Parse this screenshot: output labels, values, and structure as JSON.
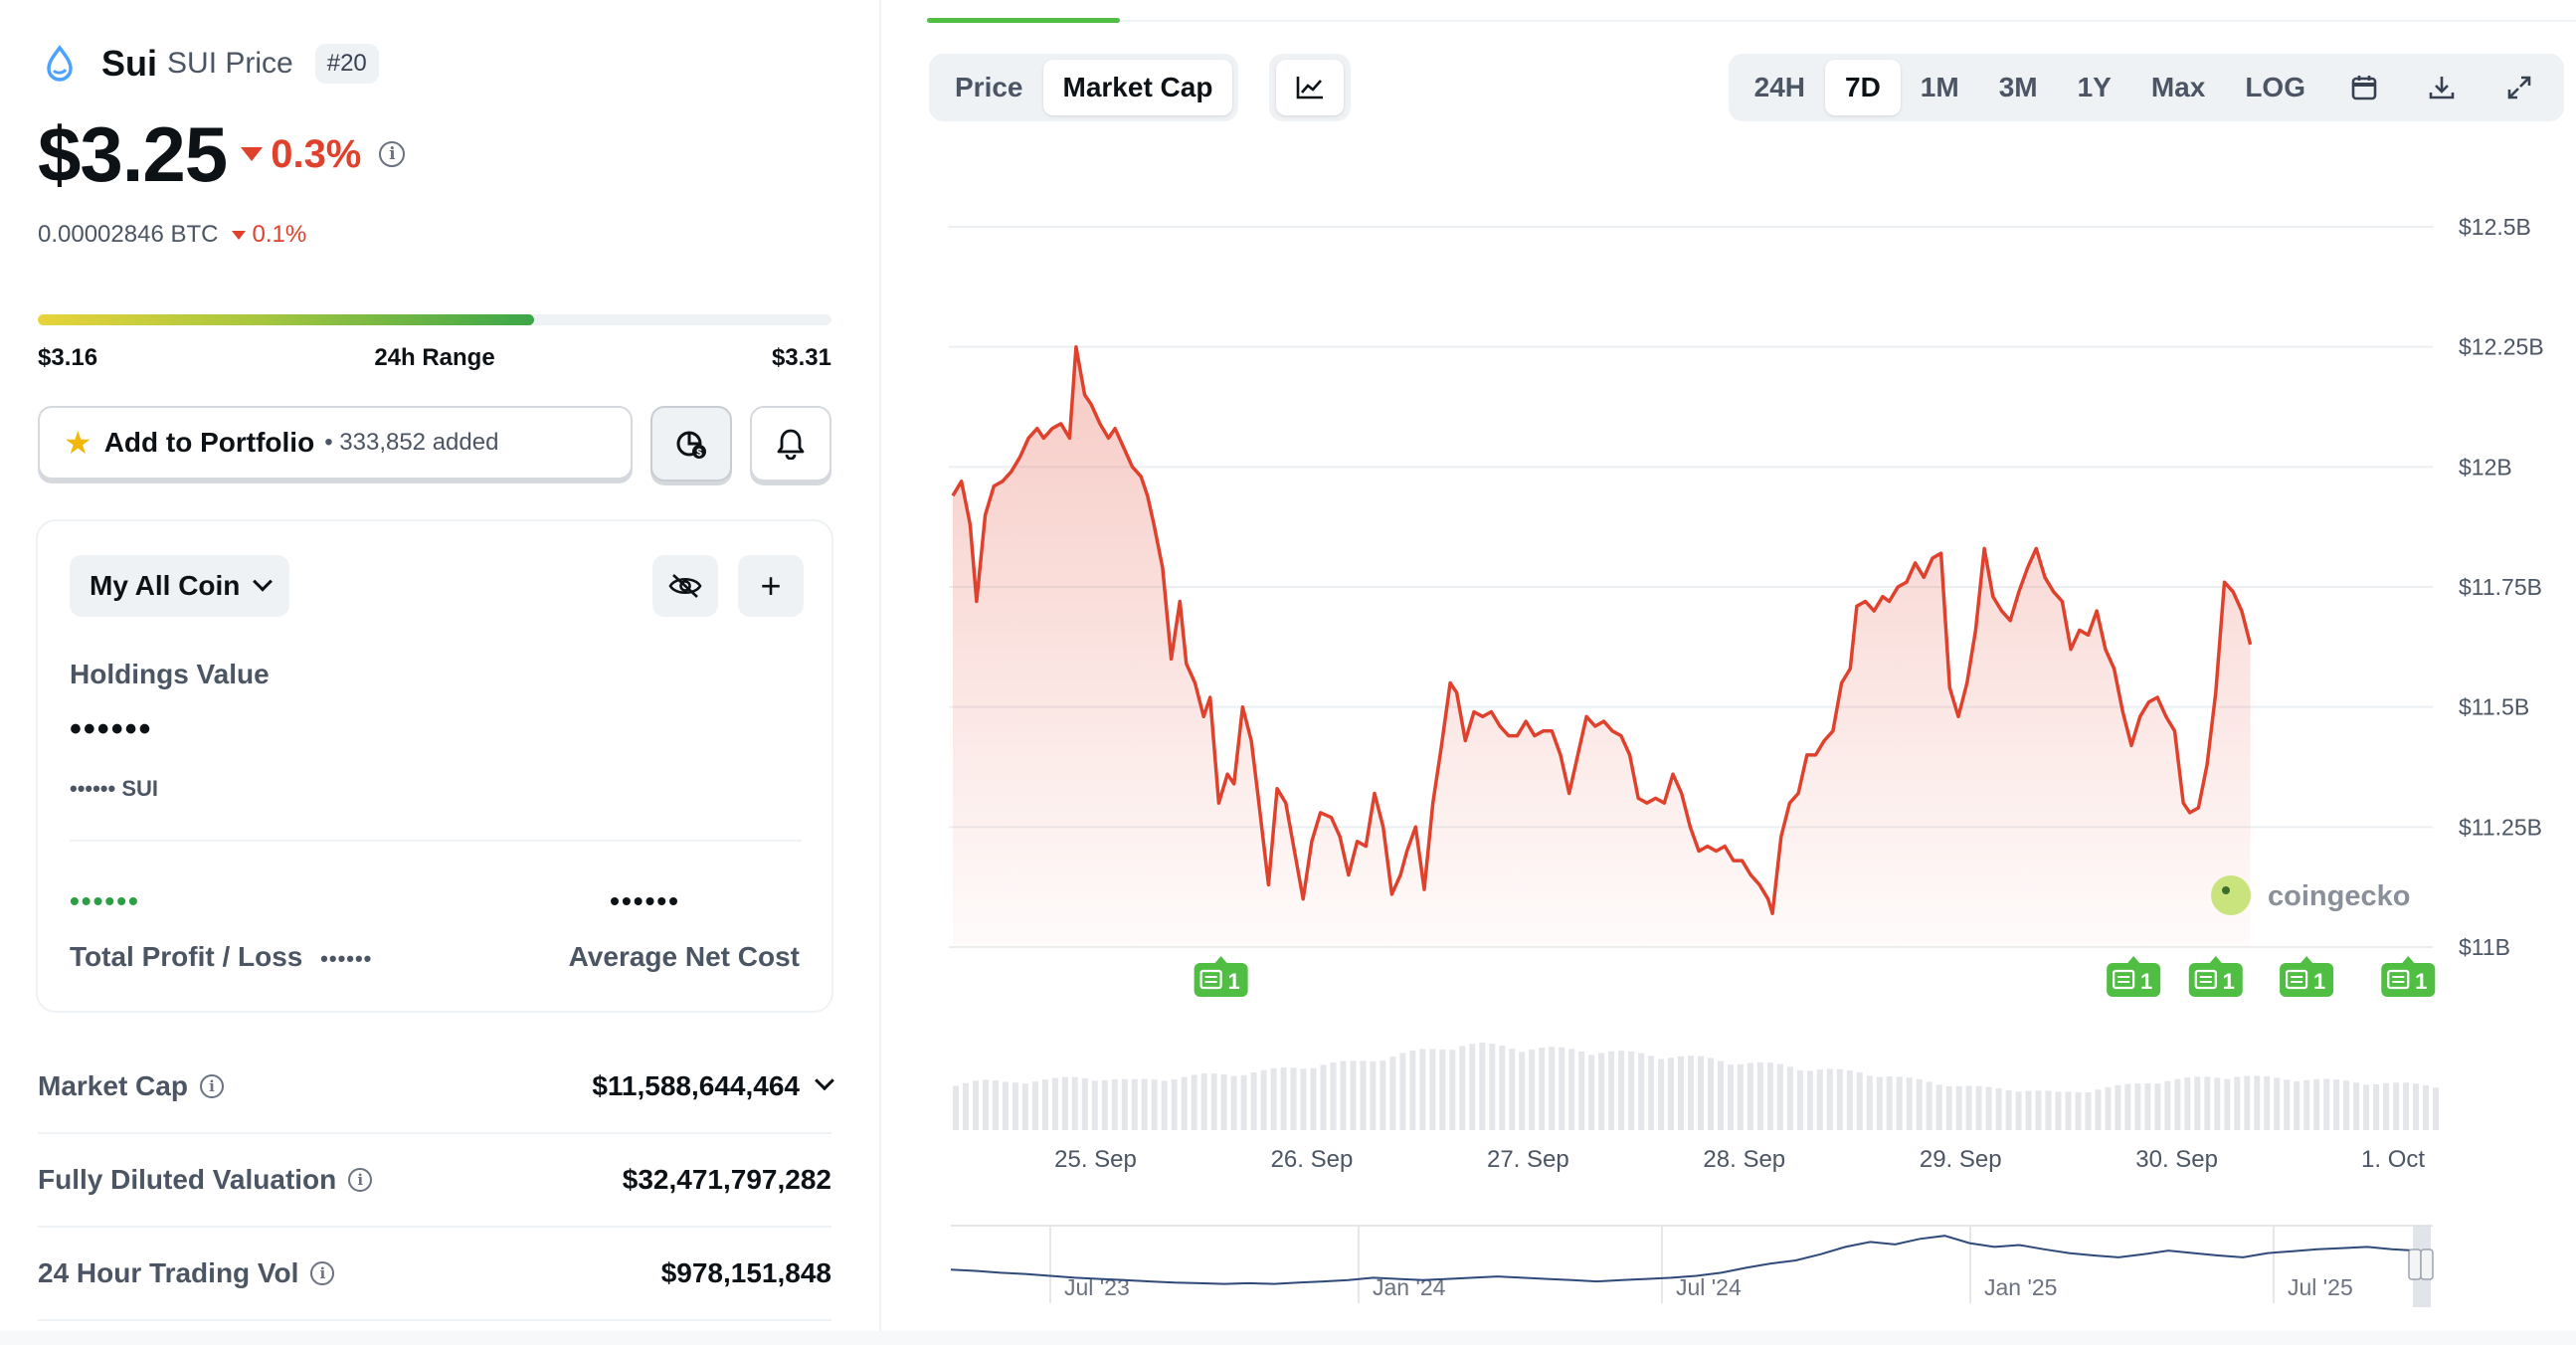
{
  "coin": {
    "name": "Sui",
    "subtitle": "SUI Price",
    "rank": "#20",
    "price": "$3.25",
    "change_pct": "0.3%",
    "btc_price": "0.00002846 BTC",
    "btc_change_pct": "0.1%",
    "color": "#4ca3ff"
  },
  "range24h": {
    "low": "$3.16",
    "label": "24h Range",
    "high": "$3.31",
    "position": 0.625
  },
  "portfolio": {
    "add_label": "Add to Portfolio",
    "added_count": "• 333,852 added",
    "star_icon": "star-icon",
    "pie_icon": "portfolio-pie-icon",
    "bell_icon": "bell-icon"
  },
  "holdings": {
    "dropdown_label": "My All Coin",
    "holdings_label": "Holdings Value",
    "holdings_value": "••••••",
    "holdings_coin": "•••••• SUI",
    "profit_value": "••••••",
    "profit_label": "Total Profit / Loss",
    "profit_label_dots": "••••••",
    "anc_value": "••••••",
    "anc_label": "Average Net Cost"
  },
  "stats": [
    {
      "label": "Market Cap",
      "value": "$11,588,644,464",
      "expand": true
    },
    {
      "label": "Fully Diluted Valuation",
      "value": "$32,471,797,282",
      "expand": false
    },
    {
      "label": "24 Hour Trading Vol",
      "value": "$978,151,848",
      "expand": false
    }
  ],
  "chart_controls": {
    "tabs": [
      "Price",
      "Market Cap"
    ],
    "active_tab": "Market Cap",
    "ranges": [
      "24H",
      "7D",
      "1M",
      "3M",
      "1Y",
      "Max",
      "LOG"
    ],
    "active_range": "7D"
  },
  "chart_data": {
    "type": "area",
    "y_axis_labels": [
      "$12.5B",
      "$12.25B",
      "$12B",
      "$11.75B",
      "$11.5B",
      "$11.25B",
      "$11B"
    ],
    "ylim": [
      11.0,
      12.5
    ],
    "x_tick_labels": [
      "25. Sep",
      "26. Sep",
      "27. Sep",
      "28. Sep",
      "29. Sep",
      "30. Sep",
      "1. Oct"
    ],
    "xlim": [
      -0.66,
      6.34
    ],
    "line_color": "#e0412d",
    "watermark": "coingecko",
    "series": [
      {
        "values": [
          [
            -0.66,
            11.94
          ],
          [
            -0.62,
            11.97
          ],
          [
            -0.58,
            11.88
          ],
          [
            -0.55,
            11.72
          ],
          [
            -0.51,
            11.9
          ],
          [
            -0.47,
            11.96
          ],
          [
            -0.43,
            11.97
          ],
          [
            -0.39,
            11.99
          ],
          [
            -0.35,
            12.02
          ],
          [
            -0.31,
            12.06
          ],
          [
            -0.27,
            12.08
          ],
          [
            -0.24,
            12.06
          ],
          [
            -0.2,
            12.08
          ],
          [
            -0.16,
            12.09
          ],
          [
            -0.12,
            12.06
          ],
          [
            -0.09,
            12.25
          ],
          [
            -0.05,
            12.15
          ],
          [
            -0.02,
            12.13
          ],
          [
            0.02,
            12.09
          ],
          [
            0.06,
            12.06
          ],
          [
            0.09,
            12.08
          ],
          [
            0.13,
            12.04
          ],
          [
            0.17,
            12.0
          ],
          [
            0.21,
            11.98
          ],
          [
            0.24,
            11.94
          ],
          [
            0.27,
            11.88
          ],
          [
            0.31,
            11.79
          ],
          [
            0.35,
            11.6
          ],
          [
            0.39,
            11.72
          ],
          [
            0.42,
            11.59
          ],
          [
            0.46,
            11.55
          ],
          [
            0.5,
            11.48
          ],
          [
            0.53,
            11.52
          ],
          [
            0.57,
            11.3
          ],
          [
            0.61,
            11.36
          ],
          [
            0.64,
            11.34
          ],
          [
            0.68,
            11.5
          ],
          [
            0.72,
            11.43
          ],
          [
            0.75,
            11.32
          ],
          [
            0.8,
            11.13
          ],
          [
            0.84,
            11.33
          ],
          [
            0.88,
            11.3
          ],
          [
            0.92,
            11.2
          ],
          [
            0.96,
            11.1
          ],
          [
            1.0,
            11.22
          ],
          [
            1.04,
            11.28
          ],
          [
            1.09,
            11.27
          ],
          [
            1.13,
            11.23
          ],
          [
            1.17,
            11.15
          ],
          [
            1.21,
            11.22
          ],
          [
            1.25,
            11.21
          ],
          [
            1.29,
            11.32
          ],
          [
            1.33,
            11.25
          ],
          [
            1.37,
            11.11
          ],
          [
            1.41,
            11.15
          ],
          [
            1.44,
            11.2
          ],
          [
            1.48,
            11.25
          ],
          [
            1.52,
            11.12
          ],
          [
            1.56,
            11.3
          ],
          [
            1.6,
            11.42
          ],
          [
            1.64,
            11.55
          ],
          [
            1.67,
            11.53
          ],
          [
            1.71,
            11.43
          ],
          [
            1.75,
            11.49
          ],
          [
            1.79,
            11.48
          ],
          [
            1.83,
            11.49
          ],
          [
            1.87,
            11.46
          ],
          [
            1.91,
            11.44
          ],
          [
            1.95,
            11.44
          ],
          [
            1.99,
            11.47
          ],
          [
            2.03,
            11.44
          ],
          [
            2.07,
            11.45
          ],
          [
            2.11,
            11.45
          ],
          [
            2.15,
            11.4
          ],
          [
            2.19,
            11.32
          ],
          [
            2.23,
            11.4
          ],
          [
            2.27,
            11.48
          ],
          [
            2.31,
            11.46
          ],
          [
            2.35,
            11.47
          ],
          [
            2.39,
            11.45
          ],
          [
            2.43,
            11.44
          ],
          [
            2.47,
            11.4
          ],
          [
            2.51,
            11.31
          ],
          [
            2.55,
            11.3
          ],
          [
            2.59,
            11.31
          ],
          [
            2.63,
            11.3
          ],
          [
            2.67,
            11.36
          ],
          [
            2.71,
            11.32
          ],
          [
            2.75,
            11.25
          ],
          [
            2.79,
            11.2
          ],
          [
            2.83,
            11.21
          ],
          [
            2.87,
            11.2
          ],
          [
            2.91,
            11.21
          ],
          [
            2.95,
            11.18
          ],
          [
            2.99,
            11.18
          ],
          [
            3.03,
            11.15
          ],
          [
            3.07,
            11.13
          ],
          [
            3.11,
            11.1
          ],
          [
            3.13,
            11.07
          ],
          [
            3.17,
            11.23
          ],
          [
            3.21,
            11.3
          ],
          [
            3.25,
            11.32
          ],
          [
            3.29,
            11.4
          ],
          [
            3.33,
            11.4
          ],
          [
            3.37,
            11.43
          ],
          [
            3.41,
            11.45
          ],
          [
            3.45,
            11.55
          ],
          [
            3.49,
            11.58
          ],
          [
            3.52,
            11.71
          ],
          [
            3.56,
            11.72
          ],
          [
            3.6,
            11.7
          ],
          [
            3.64,
            11.73
          ],
          [
            3.67,
            11.72
          ],
          [
            3.71,
            11.75
          ],
          [
            3.75,
            11.76
          ],
          [
            3.79,
            11.8
          ],
          [
            3.83,
            11.77
          ],
          [
            3.87,
            11.81
          ],
          [
            3.91,
            11.82
          ],
          [
            3.95,
            11.54
          ],
          [
            3.99,
            11.48
          ],
          [
            4.03,
            11.55
          ],
          [
            4.07,
            11.66
          ],
          [
            4.11,
            11.83
          ],
          [
            4.15,
            11.73
          ],
          [
            4.19,
            11.7
          ],
          [
            4.23,
            11.68
          ],
          [
            4.27,
            11.74
          ],
          [
            4.31,
            11.79
          ],
          [
            4.35,
            11.83
          ],
          [
            4.39,
            11.77
          ],
          [
            4.43,
            11.74
          ],
          [
            4.47,
            11.72
          ],
          [
            4.51,
            11.62
          ],
          [
            4.55,
            11.66
          ],
          [
            4.59,
            11.65
          ],
          [
            4.63,
            11.7
          ],
          [
            4.67,
            11.62
          ],
          [
            4.71,
            11.58
          ],
          [
            4.75,
            11.49
          ],
          [
            4.79,
            11.42
          ],
          [
            4.83,
            11.48
          ],
          [
            4.87,
            11.51
          ],
          [
            4.91,
            11.52
          ],
          [
            4.95,
            11.48
          ],
          [
            4.99,
            11.45
          ],
          [
            5.03,
            11.3
          ],
          [
            5.06,
            11.28
          ],
          [
            5.1,
            11.29
          ],
          [
            5.14,
            11.38
          ],
          [
            5.18,
            11.53
          ],
          [
            5.22,
            11.76
          ],
          [
            5.26,
            11.74
          ],
          [
            5.3,
            11.7
          ],
          [
            5.34,
            11.63
          ]
        ]
      }
    ]
  },
  "news_markers": [
    {
      "x": 0.58,
      "label": "1"
    },
    {
      "x": 4.8,
      "label": "1"
    },
    {
      "x": 5.18,
      "label": "1"
    },
    {
      "x": 5.6,
      "label": "1"
    },
    {
      "x": 6.07,
      "label": "1"
    }
  ],
  "volume_profile": [
    0.55,
    0.58,
    0.56,
    0.58,
    0.6,
    0.62,
    0.6,
    0.58,
    0.6,
    0.62,
    0.65,
    0.66,
    0.68,
    0.72,
    0.75,
    0.78,
    0.8,
    0.85,
    0.9,
    0.95,
    1.0,
    1.0,
    0.98,
    0.96,
    0.95,
    0.94,
    0.92,
    0.9,
    0.88,
    0.86,
    0.84,
    0.8,
    0.78,
    0.76,
    0.72,
    0.7,
    0.68,
    0.64,
    0.6,
    0.56,
    0.52,
    0.5,
    0.48,
    0.46,
    0.44,
    0.46,
    0.5,
    0.54,
    0.58,
    0.6,
    0.62,
    0.64,
    0.62,
    0.6,
    0.6,
    0.58,
    0.56,
    0.55,
    0.54,
    0.52
  ],
  "navigator": {
    "labels": [
      "Jul '23",
      "Jan '24",
      "Jul '24",
      "Jan '25",
      "Jul '25"
    ],
    "profile": [
      0.35,
      0.33,
      0.3,
      0.28,
      0.25,
      0.22,
      0.2,
      0.18,
      0.16,
      0.14,
      0.13,
      0.12,
      0.13,
      0.12,
      0.14,
      0.16,
      0.18,
      0.22,
      0.2,
      0.18,
      0.2,
      0.22,
      0.24,
      0.22,
      0.2,
      0.18,
      0.16,
      0.18,
      0.2,
      0.22,
      0.25,
      0.3,
      0.38,
      0.45,
      0.5,
      0.6,
      0.72,
      0.8,
      0.76,
      0.85,
      0.9,
      0.78,
      0.72,
      0.75,
      0.68,
      0.62,
      0.58,
      0.55,
      0.6,
      0.66,
      0.62,
      0.58,
      0.55,
      0.62,
      0.65,
      0.68,
      0.7,
      0.72,
      0.68,
      0.66
    ]
  }
}
